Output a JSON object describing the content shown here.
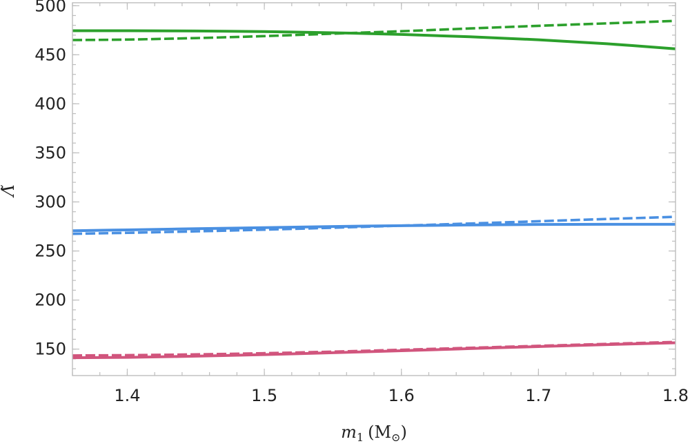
{
  "chart_data": {
    "type": "line",
    "title": "",
    "xlabel": {
      "main": "m",
      "sub": "1",
      "unit": "(M",
      "unit_sub": "⊙",
      "close": ")"
    },
    "ylabel": "Λ̃",
    "xlim": [
      1.36,
      1.8
    ],
    "ylim": [
      123,
      503
    ],
    "x_ticks": [
      1.4,
      1.5,
      1.6,
      1.7,
      1.8
    ],
    "x_tick_labels": [
      "1.4",
      "1.5",
      "1.6",
      "1.7",
      "1.8"
    ],
    "y_ticks": [
      150,
      200,
      250,
      300,
      350,
      400,
      450,
      500
    ],
    "y_tick_labels": [
      "150",
      "200",
      "250",
      "300",
      "350",
      "400",
      "450",
      "500"
    ],
    "x_minor_step": 0.02,
    "y_minor_step": 10,
    "x": [
      1.36,
      1.4,
      1.45,
      1.5,
      1.55,
      1.6,
      1.65,
      1.7,
      1.75,
      1.8
    ],
    "series": [
      {
        "color": "#2ca02c",
        "style": "solid",
        "values": [
          474.5,
          474.5,
          474.2,
          473.6,
          472.4,
          470.7,
          468.3,
          465.3,
          461.2,
          456.0
        ]
      },
      {
        "color": "#2ca02c",
        "style": "dashed",
        "values": [
          465.0,
          465.5,
          467.0,
          469.0,
          471.5,
          474.0,
          476.8,
          479.5,
          482.0,
          484.5
        ]
      },
      {
        "color": "#4a90e2",
        "style": "solid",
        "values": [
          270.6,
          271.5,
          272.7,
          273.8,
          274.9,
          275.8,
          276.5,
          277.0,
          277.2,
          277.2
        ]
      },
      {
        "color": "#4a90e2",
        "style": "dashed",
        "values": [
          267.5,
          268.5,
          270.0,
          271.7,
          273.7,
          275.8,
          278.0,
          280.3,
          282.6,
          284.8
        ]
      },
      {
        "color": "#d1557d",
        "style": "solid",
        "values": [
          141.2,
          141.6,
          142.8,
          144.4,
          146.3,
          148.3,
          150.5,
          152.6,
          154.6,
          156.4
        ]
      },
      {
        "color": "#d1557d",
        "style": "dashed",
        "values": [
          143.5,
          143.8,
          144.6,
          145.8,
          147.4,
          149.3,
          151.3,
          153.3,
          155.3,
          157.3
        ]
      }
    ]
  }
}
